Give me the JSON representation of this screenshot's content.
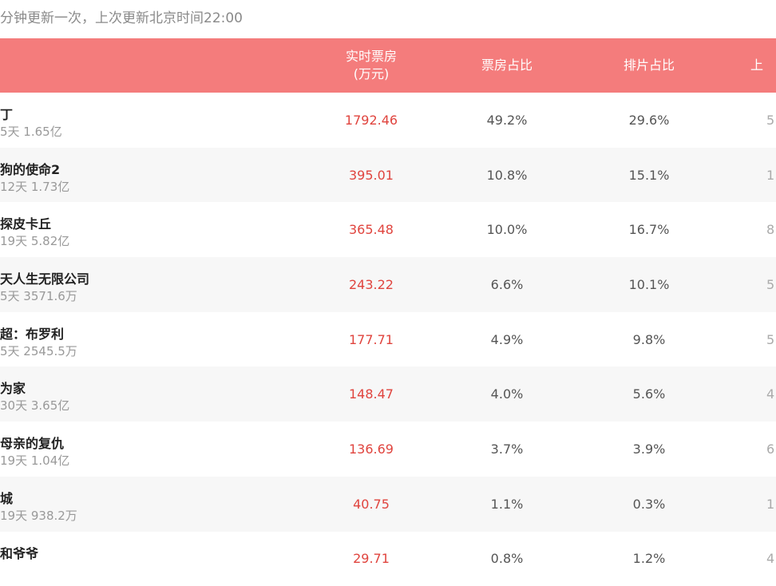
{
  "update_note": "分钟更新一次，上次更新北京时间22:00",
  "table": {
    "headers": {
      "name": "",
      "realtime_line1": "实时票房",
      "realtime_line2": "(万元)",
      "box_ratio": "票房占比",
      "show_ratio": "排片占比",
      "more": "上"
    },
    "rows": [
      {
        "title": "丁",
        "sub": "5天 1.65亿",
        "realtime": "1792.46",
        "box_ratio": "49.2%",
        "show_ratio": "29.6%",
        "more": "5"
      },
      {
        "title": "狗的使命2",
        "sub": "12天 1.73亿",
        "realtime": "395.01",
        "box_ratio": "10.8%",
        "show_ratio": "15.1%",
        "more": "1"
      },
      {
        "title": "探皮卡丘",
        "sub": "19天 5.82亿",
        "realtime": "365.48",
        "box_ratio": "10.0%",
        "show_ratio": "16.7%",
        "more": "8"
      },
      {
        "title": "天人生无限公司",
        "sub": "5天 3571.6万",
        "realtime": "243.22",
        "box_ratio": "6.6%",
        "show_ratio": "10.1%",
        "more": "5"
      },
      {
        "title": "超：布罗利",
        "sub": "5天 2545.5万",
        "realtime": "177.71",
        "box_ratio": "4.9%",
        "show_ratio": "9.8%",
        "more": "5"
      },
      {
        "title": "为家",
        "sub": "30天 3.65亿",
        "realtime": "148.47",
        "box_ratio": "4.0%",
        "show_ratio": "5.6%",
        "more": "4"
      },
      {
        "title": "母亲的复仇",
        "sub": "19天 1.04亿",
        "realtime": "136.69",
        "box_ratio": "3.7%",
        "show_ratio": "3.9%",
        "more": "6"
      },
      {
        "title": "城",
        "sub": "19天 938.2万",
        "realtime": "40.75",
        "box_ratio": "1.1%",
        "show_ratio": "0.3%",
        "more": "1"
      },
      {
        "title": "和爷爷",
        "sub": "",
        "realtime": "29.71",
        "box_ratio": "0.8%",
        "show_ratio": "1.2%",
        "more": "4"
      }
    ]
  },
  "colors": {
    "header_bg": "#f47c7c",
    "realtime_value": "#e0443e",
    "alt_row_bg": "#f7f7f7"
  }
}
